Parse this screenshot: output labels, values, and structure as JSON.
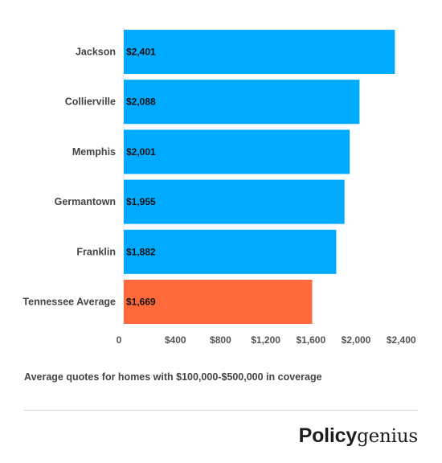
{
  "chart_data": {
    "type": "bar",
    "orientation": "horizontal",
    "categories": [
      "Jackson",
      "Collierville",
      "Memphis",
      "Germantown",
      "Franklin",
      "Tennessee Average"
    ],
    "values": [
      2401,
      2088,
      2001,
      1955,
      1882,
      1669
    ],
    "data_labels": [
      "$2,401",
      "$2,088",
      "$2,001",
      "$1,955",
      "$1,882",
      "$1,669"
    ],
    "bar_colors": [
      "#00aaff",
      "#00aaff",
      "#00aaff",
      "#00aaff",
      "#00aaff",
      "#ff6a3d"
    ],
    "x_ticks": [
      0,
      400,
      800,
      1200,
      1600,
      2000,
      2400
    ],
    "x_tick_labels": [
      "0",
      "$400",
      "$800",
      "$1,200",
      "$1,600",
      "$2,000",
      "$2,400"
    ],
    "title": "",
    "xlabel": "",
    "ylabel": "",
    "grid": false,
    "legend": "none"
  },
  "caption": "Average quotes for homes with $100,000-$500,000 in coverage",
  "brand": {
    "bold": "Policy",
    "regular": "genius"
  }
}
